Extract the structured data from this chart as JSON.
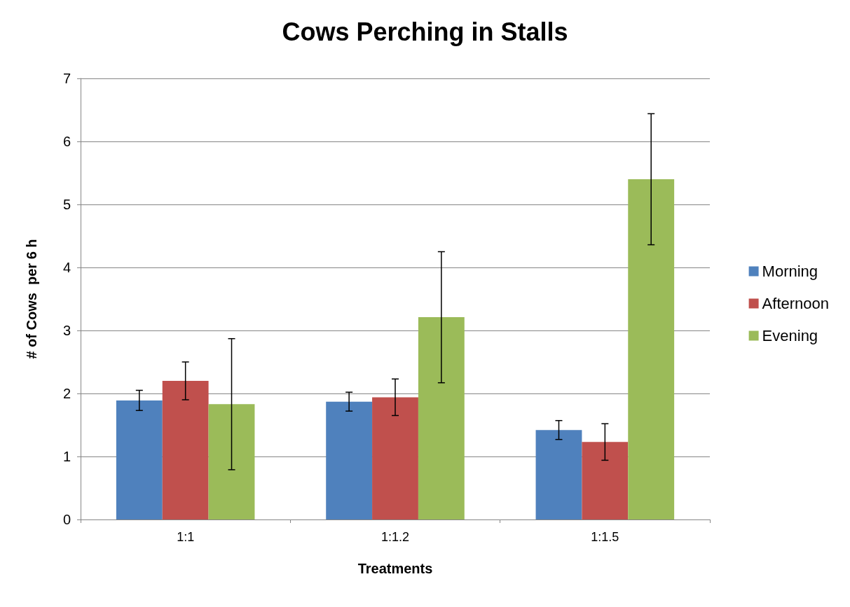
{
  "chart_data": {
    "type": "bar",
    "title": "Cows Perching in Stalls",
    "xlabel": "Treatments",
    "ylabel": "# of Cows  per 6 h",
    "categories": [
      "1:1",
      "1:1.2",
      "1:1.5"
    ],
    "series": [
      {
        "name": "Morning",
        "color": "#4f81bd",
        "values": [
          1.89,
          1.87,
          1.42
        ],
        "errors": [
          0.16,
          0.15,
          0.15
        ]
      },
      {
        "name": "Afternoon",
        "color": "#c0504d",
        "values": [
          2.2,
          1.94,
          1.23
        ],
        "errors": [
          0.3,
          0.29,
          0.29
        ]
      },
      {
        "name": "Evening",
        "color": "#9bbb59",
        "values": [
          1.83,
          3.21,
          5.4
        ],
        "errors": [
          1.04,
          1.04,
          1.04
        ]
      }
    ],
    "ylim": [
      0,
      7
    ],
    "yticks": [
      0,
      1,
      2,
      3,
      4,
      5,
      6,
      7
    ],
    "grid": "y",
    "legend": "right"
  }
}
